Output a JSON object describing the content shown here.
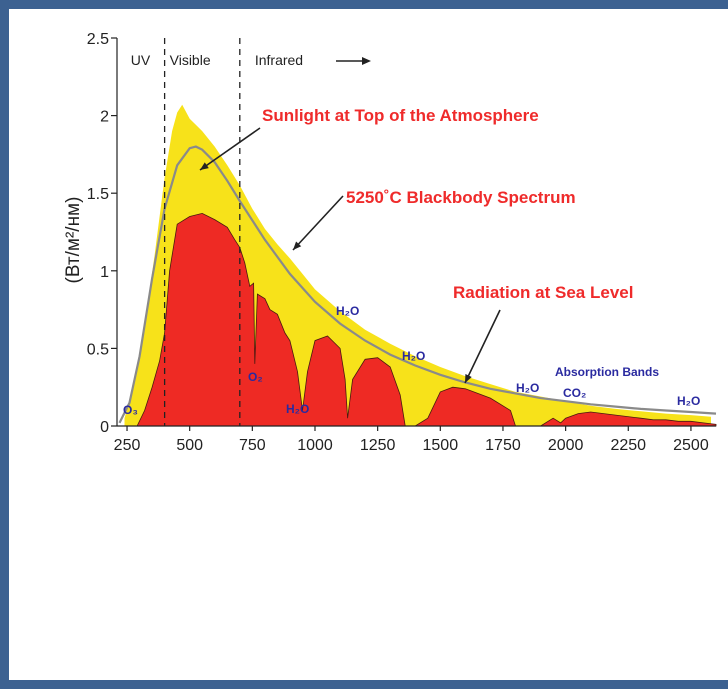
{
  "chart_data": {
    "type": "area",
    "ylabel": "(Вт/м²/нм)",
    "xlim": [
      210,
      2600
    ],
    "ylim": [
      0,
      2.5
    ],
    "x_ticks": [
      250,
      500,
      750,
      1000,
      1250,
      1500,
      1750,
      2000,
      2250,
      2500
    ],
    "y_ticks": [
      0,
      0.5,
      1,
      1.5,
      2,
      2.5
    ],
    "y_tick_labels": [
      "0",
      "0.5",
      "1",
      "1.5",
      "2",
      "2.5"
    ],
    "regions": [
      {
        "label": "UV"
      },
      {
        "label": "Visible"
      },
      {
        "label": "Infrared"
      }
    ],
    "region_boundaries": [
      400,
      700
    ],
    "series": [
      {
        "name": "Sunlight at Top of the Atmosphere",
        "color": "#f7e21a",
        "x": [
          240,
          280,
          320,
          360,
          400,
          430,
          450,
          470,
          500,
          550,
          600,
          650,
          700,
          750,
          800,
          850,
          900,
          950,
          1000,
          1100,
          1200,
          1300,
          1400,
          1500,
          1600,
          1700,
          1800,
          1900,
          2000,
          2100,
          2200,
          2300,
          2400,
          2500,
          2580
        ],
        "y": [
          0.05,
          0.28,
          0.65,
          1.1,
          1.6,
          1.9,
          2.02,
          2.07,
          1.98,
          1.9,
          1.8,
          1.68,
          1.55,
          1.4,
          1.27,
          1.17,
          1.08,
          0.98,
          0.88,
          0.74,
          0.62,
          0.53,
          0.45,
          0.38,
          0.32,
          0.27,
          0.22,
          0.19,
          0.16,
          0.13,
          0.11,
          0.095,
          0.08,
          0.07,
          0.06
        ]
      },
      {
        "name": "5250°C Blackbody Spectrum",
        "color": "#8a8a8a",
        "x": [
          220,
          260,
          300,
          350,
          400,
          450,
          500,
          525,
          550,
          600,
          650,
          700,
          800,
          900,
          1000,
          1100,
          1200,
          1300,
          1400,
          1500,
          1600,
          1700,
          1800,
          1900,
          2000,
          2100,
          2200,
          2300,
          2400,
          2500,
          2600
        ],
        "y": [
          0.02,
          0.15,
          0.45,
          0.95,
          1.4,
          1.68,
          1.79,
          1.8,
          1.78,
          1.7,
          1.58,
          1.45,
          1.2,
          0.98,
          0.8,
          0.66,
          0.55,
          0.46,
          0.39,
          0.33,
          0.28,
          0.24,
          0.21,
          0.18,
          0.16,
          0.14,
          0.125,
          0.11,
          0.1,
          0.09,
          0.08
        ]
      },
      {
        "name": "Radiation at Sea Level",
        "color": "#ee2a24",
        "x": [
          290,
          320,
          350,
          380,
          400,
          420,
          450,
          500,
          550,
          600,
          650,
          680,
          700,
          720,
          740,
          755,
          760,
          770,
          800,
          820,
          850,
          880,
          900,
          930,
          950,
          970,
          1000,
          1050,
          1100,
          1120,
          1130,
          1150,
          1200,
          1250,
          1300,
          1340,
          1360,
          1400,
          1450,
          1500,
          1550,
          1600,
          1700,
          1780,
          1800,
          1900,
          1950,
          1980,
          2000,
          2050,
          2100,
          2200,
          2300,
          2350,
          2400,
          2450,
          2500,
          2550,
          2600
        ],
        "y": [
          0.0,
          0.1,
          0.25,
          0.42,
          0.6,
          1.0,
          1.3,
          1.35,
          1.37,
          1.33,
          1.28,
          1.2,
          1.15,
          1.05,
          0.9,
          0.92,
          0.4,
          0.85,
          0.82,
          0.75,
          0.72,
          0.6,
          0.55,
          0.35,
          0.1,
          0.35,
          0.55,
          0.58,
          0.5,
          0.3,
          0.05,
          0.3,
          0.43,
          0.44,
          0.38,
          0.2,
          0.0,
          0.0,
          0.05,
          0.22,
          0.25,
          0.24,
          0.18,
          0.1,
          0.0,
          0.0,
          0.05,
          0.02,
          0.05,
          0.08,
          0.09,
          0.07,
          0.05,
          0.04,
          0.04,
          0.03,
          0.03,
          0.02,
          0.01
        ]
      }
    ],
    "annotations": [
      {
        "text": "Sunlight at Top of the Atmosphere",
        "color": "#ef2b2b"
      },
      {
        "text": "5250˚C Blackbody Spectrum",
        "color": "#ef2b2b"
      },
      {
        "text": "Radiation at Sea Level",
        "color": "#ef2b2b"
      },
      {
        "text": "Absorption Bands",
        "color": "#2a2aa0"
      }
    ],
    "absorption_labels": [
      {
        "text": "O₃",
        "x": 260
      },
      {
        "text": "O₂",
        "x": 760
      },
      {
        "text": "H₂O",
        "x": 940
      },
      {
        "text": "H₂O",
        "x": 1110
      },
      {
        "text": "H₂O",
        "x": 1410
      },
      {
        "text": "H₂O",
        "x": 1880
      },
      {
        "text": "CO₂",
        "x": 2050
      },
      {
        "text": "H₂O",
        "x": 2520
      }
    ],
    "grid": false,
    "legend": "none"
  }
}
